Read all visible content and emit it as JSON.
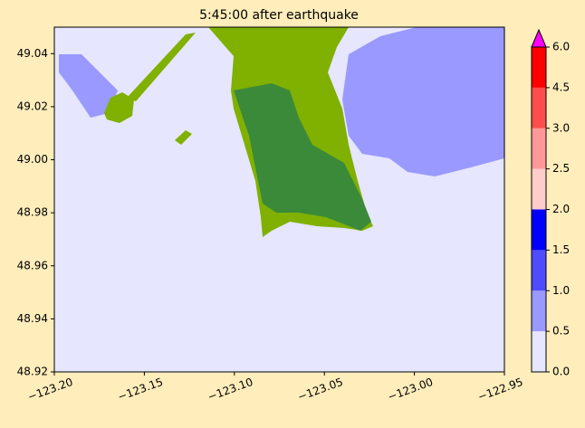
{
  "chart_data": {
    "type": "map",
    "title": "5:45:00 after earthquake",
    "background_color": "#e6e6ff",
    "xlim": [
      -123.2,
      -122.95
    ],
    "xticks": [
      {
        "value": -123.2,
        "label": "−123.20"
      },
      {
        "value": -123.15,
        "label": "−123.15"
      },
      {
        "value": -123.1,
        "label": "−123.10"
      },
      {
        "value": -123.05,
        "label": "−123.05"
      },
      {
        "value": -123.0,
        "label": "−123.00"
      },
      {
        "value": -122.95,
        "label": "−122.95"
      }
    ],
    "ylim": [
      48.92,
      49.05
    ],
    "yticks": [
      48.92,
      48.94,
      48.96,
      48.98,
      {
        "value": 49.0,
        "label": "49.00"
      },
      49.02,
      49.04
    ],
    "colorbar": {
      "levels": [
        0,
        0.5,
        1,
        1.5,
        2,
        2.5,
        3,
        4.5,
        6
      ],
      "colors": [
        "#e6e6ff",
        "#9999ff",
        "#4d4dff",
        "#0000ff",
        "#ffcccc",
        "#ff9999",
        "#ff4d4d",
        "#ff0000"
      ],
      "extend_color": "#ff00ff",
      "ticks": [
        {
          "value": 0,
          "label": "0.0"
        },
        0.5,
        {
          "value": 1,
          "label": "1.0"
        },
        1.5,
        {
          "value": 2,
          "label": "2.0"
        },
        2.5,
        {
          "value": 3,
          "label": "3.0"
        },
        4.5,
        {
          "value": 6,
          "label": "6.0"
        }
      ]
    }
  }
}
